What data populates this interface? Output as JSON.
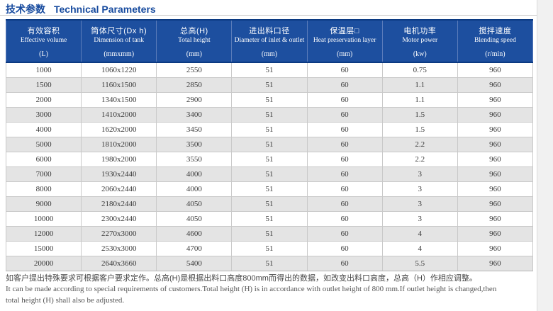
{
  "page": {
    "title_cn": "技术参数",
    "title_en": "Technical Parameters"
  },
  "table": {
    "columns": [
      {
        "cn": "有效容积",
        "en": "Effective volume",
        "unit": "(L)"
      },
      {
        "cn": "筒体尺寸(Dx h)",
        "en": "Dimension of tank",
        "unit": "(mmxmm)"
      },
      {
        "cn": "总高(H)",
        "en": "Total height",
        "unit": "(mm)"
      },
      {
        "cn": "进出料口径",
        "en": "Diameter of inlet & outlet",
        "unit": "(mm)"
      },
      {
        "cn": "保温层□",
        "en": "Heat preservation layer",
        "unit": "(mm)"
      },
      {
        "cn": "电机功率",
        "en": "Motor power",
        "unit": "(kw)"
      },
      {
        "cn": "搅拌速度",
        "en": "Blending speed",
        "unit": "(r/min)"
      }
    ],
    "rows": [
      [
        "1000",
        "1060x1220",
        "2550",
        "51",
        "60",
        "0.75",
        "960"
      ],
      [
        "1500",
        "1160x1500",
        "2850",
        "51",
        "60",
        "1.1",
        "960"
      ],
      [
        "2000",
        "1340x1500",
        "2900",
        "51",
        "60",
        "1.1",
        "960"
      ],
      [
        "3000",
        "1410x2000",
        "3400",
        "51",
        "60",
        "1.5",
        "960"
      ],
      [
        "4000",
        "1620x2000",
        "3450",
        "51",
        "60",
        "1.5",
        "960"
      ],
      [
        "5000",
        "1810x2000",
        "3500",
        "51",
        "60",
        "2.2",
        "960"
      ],
      [
        "6000",
        "1980x2000",
        "3550",
        "51",
        "60",
        "2.2",
        "960"
      ],
      [
        "7000",
        "1930x2440",
        "4000",
        "51",
        "60",
        "3",
        "960"
      ],
      [
        "8000",
        "2060x2440",
        "4000",
        "51",
        "60",
        "3",
        "960"
      ],
      [
        "9000",
        "2180x2440",
        "4050",
        "51",
        "60",
        "3",
        "960"
      ],
      [
        "10000",
        "2300x2440",
        "4050",
        "51",
        "60",
        "3",
        "960"
      ],
      [
        "12000",
        "2270x3000",
        "4600",
        "51",
        "60",
        "4",
        "960"
      ],
      [
        "15000",
        "2530x3000",
        "4700",
        "51",
        "60",
        "4",
        "960"
      ],
      [
        "20000",
        "2640x3660",
        "5400",
        "51",
        "60",
        "5.5",
        "960"
      ]
    ]
  },
  "footnote": {
    "cn": "如客户提出特殊要求可根据客户要求定作。总高(H)是根据出料口高度800mm而得出的数据，如改变出料口高度，总高（H）作相应调整。",
    "en_line1": "It can be made according to special requirements of customers.Total height (H) is in accordance with outlet height of 800 mm.If outlet height is changed,then",
    "en_line2": "total height (H) shall also be adjusted."
  },
  "colors": {
    "header_bg": "#1d4f9f",
    "header_border": "#0b3a82",
    "title_blue": "#164a9e",
    "alt_row_gray": "#e4e4e4",
    "grid_line": "#c9c9c9"
  }
}
